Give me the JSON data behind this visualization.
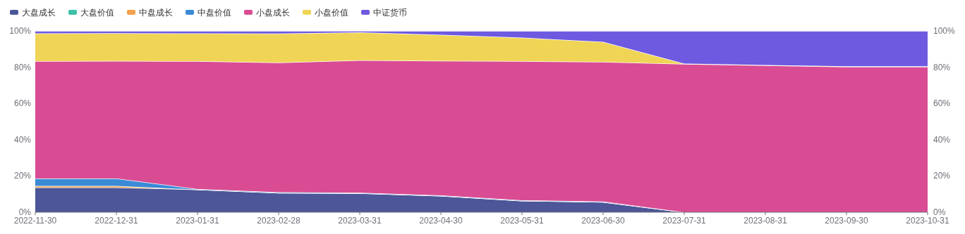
{
  "chart_data": {
    "type": "area",
    "stacked": true,
    "legend": "top left",
    "categories": [
      "2022-11-30",
      "2022-12-31",
      "2023-01-31",
      "2023-02-28",
      "2023-03-31",
      "2023-04-30",
      "2023-05-31",
      "2023-06-30",
      "2023-07-31",
      "2023-08-31",
      "2023-09-30",
      "2023-10-31"
    ],
    "ylim": [
      0,
      100
    ],
    "yticks": [
      {
        "value": 0,
        "label": "0%"
      },
      {
        "value": 20,
        "label": "20%"
      },
      {
        "value": 40,
        "label": "40%"
      },
      {
        "value": 60,
        "label": "60%"
      },
      {
        "value": 80,
        "label": "80%"
      },
      {
        "value": 100,
        "label": "100%"
      }
    ],
    "y2lim": [
      0,
      100
    ],
    "y2ticks": [
      {
        "value": 0,
        "label": "0%"
      },
      {
        "value": 20,
        "label": "20%"
      },
      {
        "value": 40,
        "label": "40%"
      },
      {
        "value": 60,
        "label": "60%"
      },
      {
        "value": 80,
        "label": "80%"
      },
      {
        "value": 100,
        "label": "100%"
      }
    ],
    "series": [
      {
        "name": "大盘成长",
        "color": "#4c5698",
        "values": [
          13.7,
          13.7,
          12.5,
          10.7,
          10.5,
          9.0,
          6.3,
          5.6,
          0,
          0,
          0,
          0
        ]
      },
      {
        "name": "大盘价值",
        "color": "#3cc0a8",
        "values": [
          null,
          null,
          null,
          null,
          null,
          null,
          null,
          null,
          null,
          null,
          null,
          null
        ]
      },
      {
        "name": "中盘成长",
        "color": "#f5a04a",
        "values": [
          0.8,
          0.8,
          0,
          0,
          0,
          0,
          0,
          0,
          0,
          0,
          0,
          0
        ]
      },
      {
        "name": "中盘价值",
        "color": "#3a8ad6",
        "values": [
          4.1,
          4.1,
          0.3,
          0.3,
          0.3,
          0.3,
          0.3,
          0.3,
          0,
          0,
          0,
          0
        ]
      },
      {
        "name": "小盘成长",
        "color": "#d94c93",
        "values": [
          64.7,
          64.8,
          70.5,
          71.6,
          73.0,
          74.2,
          76.7,
          77.0,
          81.8,
          81.0,
          80.2,
          80.2
        ]
      },
      {
        "name": "小盘价值",
        "color": "#f0d455",
        "values": [
          15.3,
          15.3,
          15.3,
          15.9,
          15.4,
          14.4,
          13.0,
          11.1,
          0.2,
          0.2,
          0.3,
          0.3
        ]
      },
      {
        "name": "中证货币",
        "color": "#6e5ae0",
        "values": [
          1.4,
          1.3,
          1.4,
          1.5,
          0.8,
          2.1,
          3.7,
          6.0,
          18.0,
          18.8,
          19.5,
          19.5
        ]
      }
    ]
  }
}
